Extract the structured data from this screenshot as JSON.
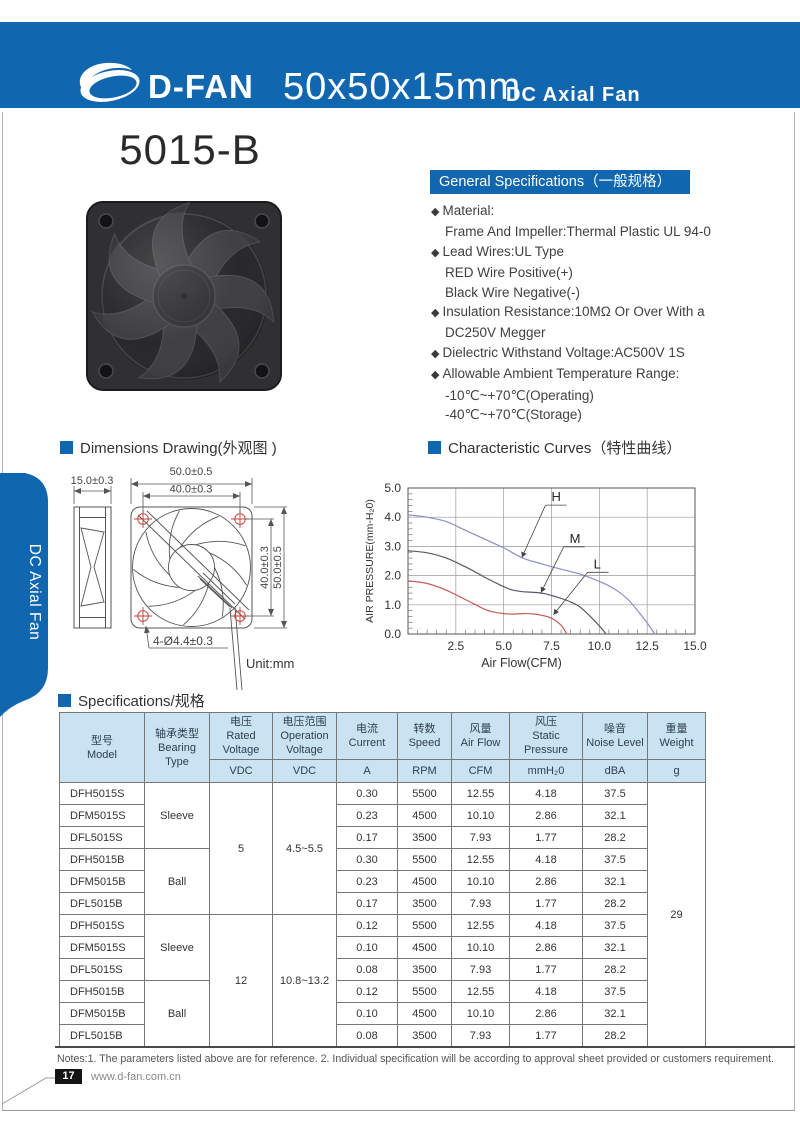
{
  "page": {
    "header": {
      "brand": "D-FAN",
      "size_title": "50x50x15mm",
      "subtitle": "DC Axial Fan"
    },
    "side_tab": "DC Axial Fan",
    "product_title": "5015-B",
    "footer": {
      "notes": "Notes:1. The parameters listed above are for reference.   2. Individual specification will be according to approval sheet provided or customers requirement.",
      "page_number": "17",
      "website": "www.d-fan.com.cn"
    }
  },
  "colors": {
    "brand_blue": "#1166b0",
    "table_header_bg": "#c9e3f3",
    "drawing_red": "#c4403a"
  },
  "sections": {
    "dimensions_title": "Dimensions Drawing(外观图 )",
    "curves_title": "Characteristic Curves（特性曲线）",
    "specs_title": "Specifications/规格"
  },
  "general_specs": {
    "title": "General Specifications（一般规格）",
    "items": [
      {
        "b": 1,
        "t": "Material:"
      },
      {
        "b": 0,
        "t": "Frame And Impeller:Thermal Plastic UL 94-0"
      },
      {
        "b": 1,
        "t": "Lead Wires:UL Type"
      },
      {
        "b": 0,
        "t": "RED Wire Positive(+)"
      },
      {
        "b": 0,
        "t": "Black Wire Negative(-)"
      },
      {
        "b": 1,
        "t": "Insulation Resistance:10MΩ Or Over With a"
      },
      {
        "b": 0,
        "t": "DC250V Megger"
      },
      {
        "b": 1,
        "t": "Dielectric Withstand Voltage:AC500V 1S"
      },
      {
        "b": 1,
        "t": "Allowable Ambient Temperature Range:"
      },
      {
        "b": 0,
        "t": "-10℃~+70℃(Operating)"
      },
      {
        "b": 0,
        "t": "-40℃~+70℃(Storage)"
      }
    ]
  },
  "dimensions": {
    "depth": "15.0±0.3",
    "outer_width": "50.0±0.5",
    "hole_pitch_h": "40.0±0.3",
    "hole_pitch_v": "40.0±0.3",
    "outer_height": "50.0±0.5",
    "holes": "4-Ø4.4±0.3",
    "unit": "Unit:mm"
  },
  "chart_data": {
    "type": "line",
    "title": "Characteristic Curves（特性曲线）",
    "xlabel": "Air Flow(CFM)",
    "ylabel": "AIR PRESSURE(mm-H₂0)",
    "xlim": [
      0,
      15
    ],
    "ylim": [
      0,
      5
    ],
    "xticks": [
      2.5,
      5.0,
      7.5,
      10.0,
      12.5,
      15.0
    ],
    "yticks": [
      0.0,
      1.0,
      2.0,
      3.0,
      4.0,
      5.0
    ],
    "x_minor_step": 0.5,
    "y_minor_step": 0.2,
    "grid": true,
    "legend_position": "inline-labels",
    "series": [
      {
        "name": "H",
        "color": "#8a8fc7",
        "points": [
          [
            0,
            4.08
          ],
          [
            1,
            4.0
          ],
          [
            2,
            3.85
          ],
          [
            3,
            3.55
          ],
          [
            4,
            3.25
          ],
          [
            5,
            2.95
          ],
          [
            6,
            2.6
          ],
          [
            7,
            2.4
          ],
          [
            8,
            2.22
          ],
          [
            9,
            2.05
          ],
          [
            10,
            1.8
          ],
          [
            10.5,
            1.65
          ],
          [
            11,
            1.45
          ],
          [
            11.5,
            1.18
          ],
          [
            12,
            0.8
          ],
          [
            12.5,
            0.38
          ],
          [
            12.9,
            0
          ]
        ]
      },
      {
        "name": "M",
        "color": "#565b65",
        "points": [
          [
            0,
            2.85
          ],
          [
            1,
            2.78
          ],
          [
            2,
            2.6
          ],
          [
            3,
            2.3
          ],
          [
            4,
            1.95
          ],
          [
            4.5,
            1.78
          ],
          [
            5,
            1.62
          ],
          [
            5.5,
            1.5
          ],
          [
            6,
            1.45
          ],
          [
            7,
            1.4
          ],
          [
            7.5,
            1.32
          ],
          [
            8,
            1.22
          ],
          [
            8.5,
            1.1
          ],
          [
            9,
            0.92
          ],
          [
            9.5,
            0.62
          ],
          [
            10,
            0.28
          ],
          [
            10.35,
            0
          ]
        ]
      },
      {
        "name": "L",
        "color": "#c0605a",
        "points": [
          [
            0,
            1.82
          ],
          [
            1,
            1.73
          ],
          [
            2,
            1.5
          ],
          [
            3,
            1.18
          ],
          [
            4,
            0.85
          ],
          [
            4.5,
            0.75
          ],
          [
            5,
            0.7
          ],
          [
            5.5,
            0.68
          ],
          [
            6,
            0.7
          ],
          [
            6.5,
            0.69
          ],
          [
            7,
            0.64
          ],
          [
            7.5,
            0.54
          ],
          [
            8,
            0.3
          ],
          [
            8.3,
            0
          ]
        ]
      }
    ],
    "labels": [
      {
        "text": "H",
        "tx": 7.5,
        "ty": 4.55,
        "ax": 5.95,
        "ay": 2.62
      },
      {
        "text": "M",
        "tx": 8.45,
        "ty": 3.12,
        "ax": 6.95,
        "ay": 1.42
      },
      {
        "text": "L",
        "tx": 9.7,
        "ty": 2.25,
        "ax": 7.6,
        "ay": 0.66
      }
    ]
  },
  "spec_table": {
    "columns": [
      {
        "zh": "型号",
        "en": "Model",
        "unit": null
      },
      {
        "zh": "轴承类型",
        "en": "Bearing Type",
        "unit": null
      },
      {
        "zh": "电压",
        "en": "Rated Voltage",
        "unit": "VDC"
      },
      {
        "zh": "电压范围",
        "en": "Operation Voltage",
        "unit": "VDC"
      },
      {
        "zh": "电流",
        "en": "Current",
        "unit": "A"
      },
      {
        "zh": "转数",
        "en": "Speed",
        "unit": "RPM"
      },
      {
        "zh": "风量",
        "en": "Air Flow",
        "unit": "CFM"
      },
      {
        "zh": "风压",
        "en": "Static Pressure",
        "unit": "mmH₂0"
      },
      {
        "zh": "噪音",
        "en": "Noise Level",
        "unit": "dBA"
      },
      {
        "zh": "重量",
        "en": "Weight",
        "unit": "g"
      }
    ],
    "rows": [
      [
        {
          "t": "DFH5015S"
        },
        {
          "t": "Sleeve",
          "rs": 3
        },
        {
          "t": "5",
          "rs": 6
        },
        {
          "t": "4.5~5.5",
          "rs": 6
        },
        {
          "t": "0.30"
        },
        {
          "t": "5500"
        },
        {
          "t": "12.55"
        },
        {
          "t": "4.18"
        },
        {
          "t": "37.5"
        },
        {
          "t": "29",
          "rs": 12
        }
      ],
      [
        {
          "t": "DFM5015S"
        },
        {
          "t": "0.23"
        },
        {
          "t": "4500"
        },
        {
          "t": "10.10"
        },
        {
          "t": "2.86"
        },
        {
          "t": "32.1"
        }
      ],
      [
        {
          "t": "DFL5015S"
        },
        {
          "t": "0.17"
        },
        {
          "t": "3500"
        },
        {
          "t": "7.93"
        },
        {
          "t": "1.77"
        },
        {
          "t": "28.2"
        }
      ],
      [
        {
          "t": "DFH5015B"
        },
        {
          "t": "Ball",
          "rs": 3
        },
        {
          "t": "0.30"
        },
        {
          "t": "5500"
        },
        {
          "t": "12.55"
        },
        {
          "t": "4.18"
        },
        {
          "t": "37.5"
        }
      ],
      [
        {
          "t": "DFM5015B"
        },
        {
          "t": "0.23"
        },
        {
          "t": "4500"
        },
        {
          "t": "10.10"
        },
        {
          "t": "2.86"
        },
        {
          "t": "32.1"
        }
      ],
      [
        {
          "t": "DFL5015B"
        },
        {
          "t": "0.17"
        },
        {
          "t": "3500"
        },
        {
          "t": "7.93"
        },
        {
          "t": "1.77"
        },
        {
          "t": "28.2"
        }
      ],
      [
        {
          "t": "DFH5015S"
        },
        {
          "t": "Sleeve",
          "rs": 3
        },
        {
          "t": "12",
          "rs": 6
        },
        {
          "t": "10.8~13.2",
          "rs": 6
        },
        {
          "t": "0.12"
        },
        {
          "t": "5500"
        },
        {
          "t": "12.55"
        },
        {
          "t": "4.18"
        },
        {
          "t": "37.5"
        }
      ],
      [
        {
          "t": "DFM5015S"
        },
        {
          "t": "0.10"
        },
        {
          "t": "4500"
        },
        {
          "t": "10.10"
        },
        {
          "t": "2.86"
        },
        {
          "t": "32.1"
        }
      ],
      [
        {
          "t": "DFL5015S"
        },
        {
          "t": "0.08"
        },
        {
          "t": "3500"
        },
        {
          "t": "7.93"
        },
        {
          "t": "1.77"
        },
        {
          "t": "28.2"
        }
      ],
      [
        {
          "t": "DFH5015B"
        },
        {
          "t": "Ball",
          "rs": 3
        },
        {
          "t": "0.12"
        },
        {
          "t": "5500"
        },
        {
          "t": "12.55"
        },
        {
          "t": "4.18"
        },
        {
          "t": "37.5"
        }
      ],
      [
        {
          "t": "DFM5015B"
        },
        {
          "t": "0.10"
        },
        {
          "t": "4500"
        },
        {
          "t": "10.10"
        },
        {
          "t": "2.86"
        },
        {
          "t": "32.1"
        }
      ],
      [
        {
          "t": "DFL5015B"
        },
        {
          "t": "0.08"
        },
        {
          "t": "3500"
        },
        {
          "t": "7.93"
        },
        {
          "t": "1.77"
        },
        {
          "t": "28.2"
        }
      ]
    ]
  }
}
